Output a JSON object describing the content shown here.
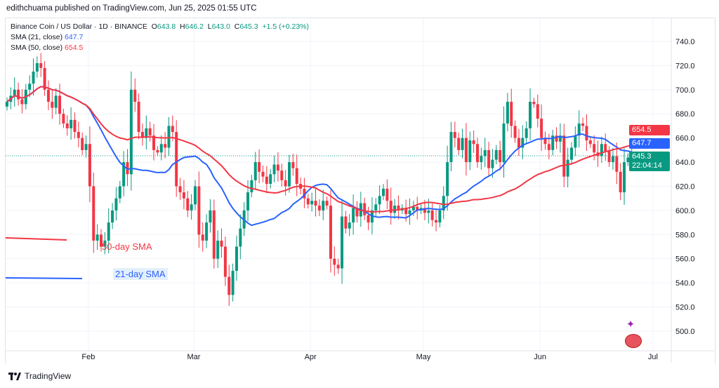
{
  "header": {
    "published": "edithchuama published on TradingView.com, Jun 25, 2025 01:55 UTC"
  },
  "legend": {
    "symbol": "Binance Coin / US Dollar · 1D · BINANCE",
    "o_label": "O",
    "o": "643.8",
    "h_label": "H",
    "h": "646.2",
    "l_label": "L",
    "l": "643.0",
    "c_label": "C",
    "c": "645.3",
    "change": "+1.5 (+0.23%)",
    "sma21_label": "SMA (21, close)",
    "sma21": "647.7",
    "sma50_label": "SMA (50, close)",
    "sma50": "654.5"
  },
  "tags": {
    "sma50": "654.5",
    "sma21": "647.7",
    "price": "645.3",
    "countdown": "22:04:14"
  },
  "annotations": {
    "sma50": "50-day SMA",
    "sma21": "21-day SMA"
  },
  "footer": {
    "brand": "TradingView"
  },
  "colors": {
    "up": "#089981",
    "down": "#f23645",
    "sma21": "#2962ff",
    "sma50": "#f23645",
    "grid": "#f0f3fa"
  },
  "chart_data": {
    "type": "candlestick",
    "title": "Binance Coin / US Dollar · 1D · BINANCE",
    "start_date": "2025-01-10",
    "yticks": [
      740,
      720,
      700,
      680,
      660,
      640,
      620,
      600,
      580,
      560,
      540,
      520,
      500
    ],
    "ylim": [
      488,
      752
    ],
    "xticks": [
      {
        "label": "Feb",
        "day": 22
      },
      {
        "label": "Mar",
        "day": 50
      },
      {
        "label": "Apr",
        "day": 81
      },
      {
        "label": "May",
        "day": 111
      },
      {
        "label": "Jun",
        "day": 142
      },
      {
        "label": "Jul",
        "day": 172
      }
    ],
    "last_price": 645.3,
    "close": [
      690,
      695,
      700,
      692,
      688,
      700,
      705,
      715,
      722,
      718,
      700,
      690,
      685,
      695,
      680,
      672,
      668,
      675,
      665,
      660,
      650,
      655,
      620,
      575,
      580,
      570,
      575,
      590,
      600,
      610,
      620,
      640,
      630,
      700,
      690,
      665,
      660,
      668,
      662,
      650,
      648,
      655,
      652,
      670,
      665,
      620,
      615,
      610,
      600,
      605,
      620,
      580,
      575,
      590,
      600,
      560,
      575,
      570,
      545,
      530,
      550,
      570,
      585,
      600,
      615,
      625,
      640,
      632,
      628,
      622,
      630,
      638,
      633,
      625,
      620,
      640,
      635,
      622,
      618,
      610,
      605,
      608,
      604,
      600,
      608,
      604,
      560,
      555,
      552,
      595,
      585,
      590,
      602,
      595,
      606,
      596,
      590,
      600,
      605,
      612,
      618,
      608,
      598,
      604,
      600,
      602,
      597,
      600,
      603,
      600,
      602,
      598,
      600,
      592,
      590,
      600,
      612,
      640,
      665,
      660,
      650,
      660,
      640,
      658,
      655,
      640,
      645,
      650,
      635,
      642,
      650,
      640,
      672,
      690,
      670,
      660,
      652,
      660,
      668,
      690,
      688,
      676,
      660,
      655,
      650,
      662,
      657,
      662,
      628,
      642,
      652,
      662,
      672,
      670,
      658,
      655,
      648,
      645,
      655,
      649,
      640,
      645,
      632,
      615,
      640,
      643.8,
      645.3
    ],
    "series": [
      {
        "name": "SMA (21, close)",
        "value": 647.7
      },
      {
        "name": "SMA (50, close)",
        "value": 654.5
      }
    ]
  }
}
